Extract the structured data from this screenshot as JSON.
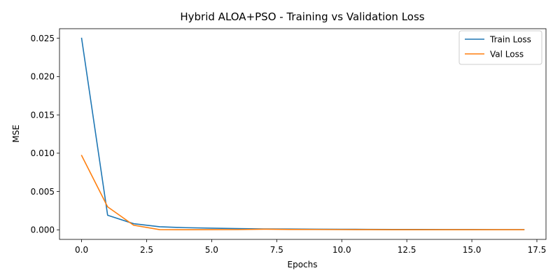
{
  "chart_data": {
    "type": "line",
    "title": "Hybrid ALOA+PSO - Training vs Validation Loss",
    "xlabel": "Epochs",
    "ylabel": "MSE",
    "xlim": [
      -0.85,
      17.85
    ],
    "ylim": [
      -0.00125,
      0.02625
    ],
    "xticks": [
      0.0,
      2.5,
      5.0,
      7.5,
      10.0,
      12.5,
      15.0,
      17.5
    ],
    "xtick_labels": [
      "0.0",
      "2.5",
      "5.0",
      "7.5",
      "10.0",
      "12.5",
      "15.0",
      "17.5"
    ],
    "yticks": [
      0.0,
      0.005,
      0.01,
      0.015,
      0.02,
      0.025
    ],
    "ytick_labels": [
      "0.000",
      "0.005",
      "0.010",
      "0.015",
      "0.020",
      "0.025"
    ],
    "grid": false,
    "legend": "top-right",
    "x": [
      0,
      1,
      2,
      3,
      4,
      5,
      6,
      7,
      8,
      9,
      10,
      11,
      12,
      13,
      14,
      15,
      16,
      17
    ],
    "series": [
      {
        "name": "Train Loss",
        "color": "#1f77b4",
        "values": [
          0.025,
          0.0019,
          0.0008,
          0.0004,
          0.00028,
          0.00022,
          0.00016,
          0.00012,
          0.0001,
          8e-05,
          7e-05,
          6e-05,
          5e-05,
          5e-05,
          4e-05,
          4e-05,
          3e-05,
          3e-05
        ]
      },
      {
        "name": "Val Loss",
        "color": "#ff7f0e",
        "values": [
          0.0097,
          0.003,
          0.0006,
          2e-05,
          1e-05,
          2e-05,
          3e-05,
          8e-05,
          5e-05,
          4e-05,
          3e-05,
          2e-05,
          1e-05,
          1e-05,
          1e-05,
          1e-05,
          1e-05,
          1e-05
        ]
      }
    ]
  }
}
